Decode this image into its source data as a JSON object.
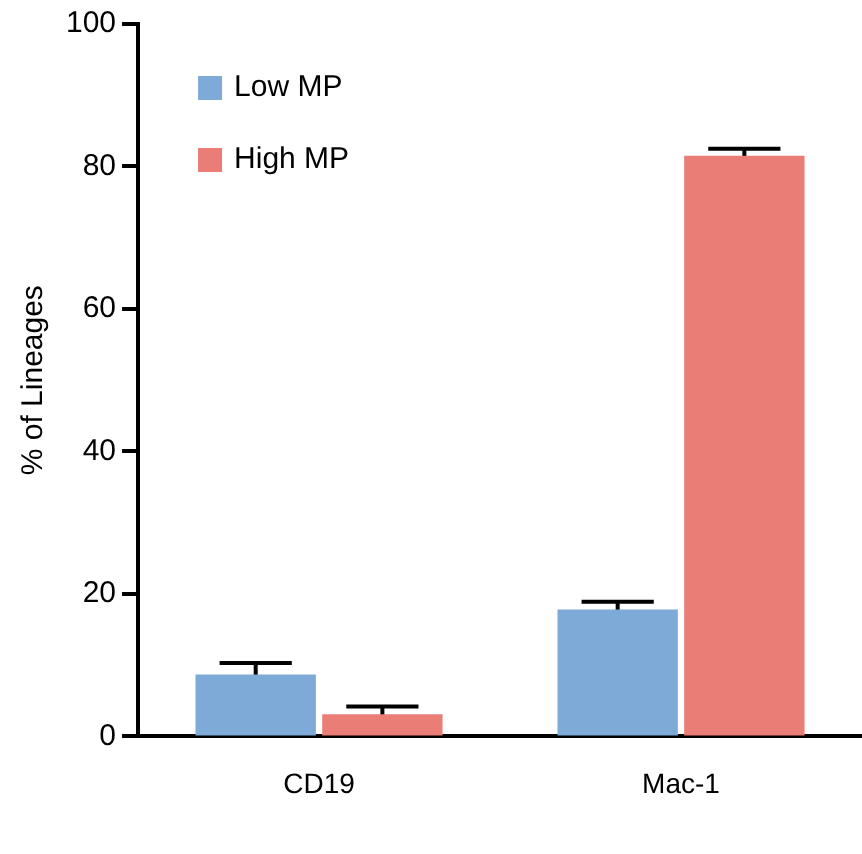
{
  "chart_data": {
    "type": "bar",
    "ylabel": "% of Lineages",
    "categories": [
      "CD19",
      "Mac-1"
    ],
    "series": [
      {
        "name": "Low MP",
        "color": "#7eaad8",
        "values": [
          8.7,
          17.8
        ],
        "errors": [
          1.6,
          1.1
        ]
      },
      {
        "name": "High MP",
        "color": "#ea7d76",
        "values": [
          3.1,
          81.5
        ],
        "errors": [
          1.1,
          1
        ]
      }
    ],
    "ylim": [
      0,
      100
    ],
    "yticks": [
      0,
      20,
      40,
      60,
      80,
      100
    ],
    "grid": false,
    "legend": "top left"
  }
}
